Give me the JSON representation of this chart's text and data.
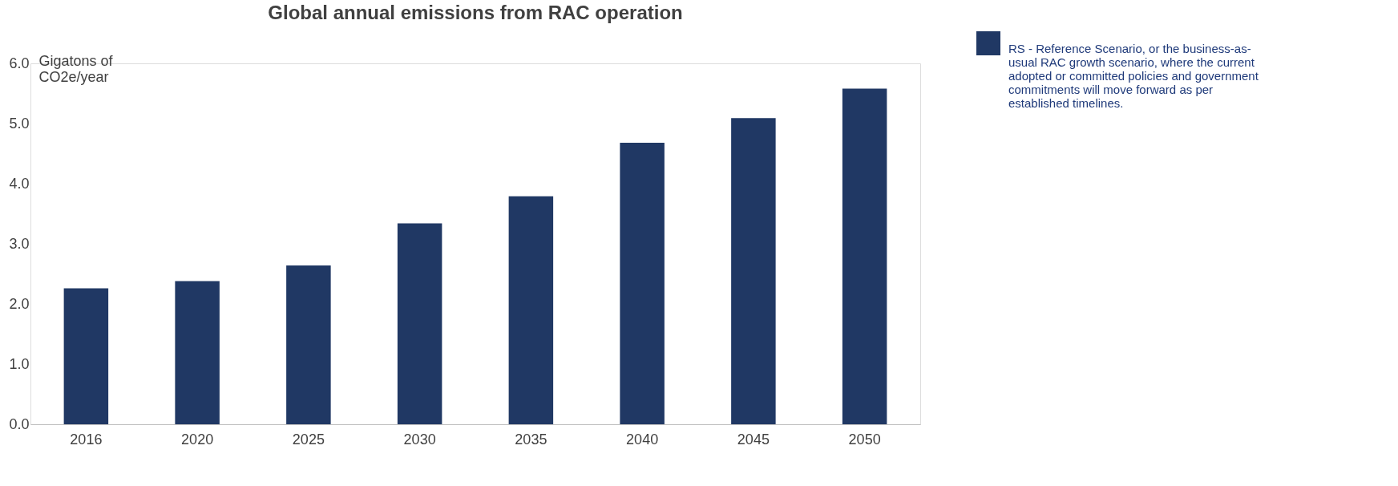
{
  "chart_data": {
    "type": "bar",
    "title": "Global annual emissions from RAC operation",
    "ylabel": "Gigatons of CO2e/year",
    "categories": [
      "2016",
      "2020",
      "2025",
      "2030",
      "2035",
      "2040",
      "2045",
      "2050"
    ],
    "series": [
      {
        "name": "RS - Reference Scenario, or the business-as-usual RAC growth scenario, where the current adopted or committed policies and government commitments will move forward as per established timelines.",
        "color": "#203864",
        "values": [
          2.26,
          2.38,
          2.64,
          3.34,
          3.79,
          4.68,
          5.09,
          5.58
        ]
      }
    ],
    "ylim": [
      0,
      6
    ],
    "yticks": [
      {
        "value": 0,
        "label": "0.0"
      },
      {
        "value": 1,
        "label": "1.0"
      },
      {
        "value": 2,
        "label": "2.0"
      },
      {
        "value": 3,
        "label": "3.0"
      },
      {
        "value": 4,
        "label": "4.0"
      },
      {
        "value": 5,
        "label": "5.0"
      },
      {
        "value": 6,
        "label": "6.0"
      }
    ],
    "grid": false,
    "legend": "top right"
  }
}
